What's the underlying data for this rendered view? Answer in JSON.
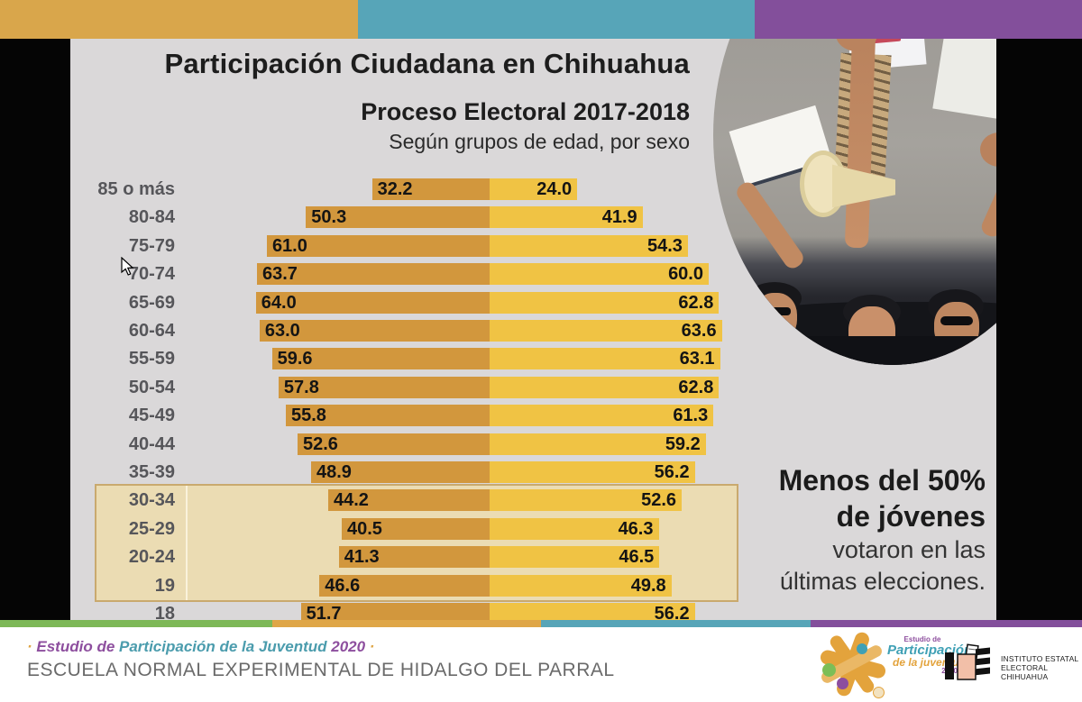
{
  "chart_data": {
    "type": "bar",
    "orientation": "diverging-horizontal",
    "title": "Participación Ciudadana en Chihuahua",
    "subtitle": "Proceso Electoral 2017-2018",
    "note": "Según grupos de edad, por sexo",
    "categories": [
      "85 o más",
      "80-84",
      "75-79",
      "70-74",
      "65-69",
      "60-64",
      "55-59",
      "50-54",
      "45-49",
      "40-44",
      "35-39",
      "30-34",
      "25-29",
      "20-24",
      "19",
      "18"
    ],
    "series": [
      {
        "name": "left",
        "values": [
          32.2,
          50.3,
          61.0,
          63.7,
          64.0,
          63.0,
          59.6,
          57.8,
          55.8,
          52.6,
          48.9,
          44.2,
          40.5,
          41.3,
          46.6,
          51.7
        ]
      },
      {
        "name": "right",
        "values": [
          24.0,
          41.9,
          54.3,
          60.0,
          62.8,
          63.6,
          63.1,
          62.8,
          61.3,
          59.2,
          56.2,
          52.6,
          46.3,
          46.5,
          49.8,
          56.2
        ]
      }
    ],
    "highlighted_categories": [
      "30-34",
      "25-29",
      "20-24",
      "19"
    ],
    "value_format": "one-decimal",
    "legend": "none",
    "grid": false
  },
  "annotation": {
    "lines": [
      "Menos del 50%",
      "de jóvenes",
      "votaron en las",
      "últimas elecciones."
    ]
  },
  "footer": {
    "tagline_segments": [
      {
        "text": "· ",
        "color": "#DFA647"
      },
      {
        "text": "Estudio de ",
        "color": "#8D4E9E"
      },
      {
        "text": "Participación de la Juventud ",
        "color": "#4B9CAD"
      },
      {
        "text": "2020",
        "color": "#8D4E9E"
      },
      {
        "text": " ·",
        "color": "#DFA647"
      }
    ],
    "school": "ESCUELA NORMAL EXPERIMENTAL DE HIDALGO DEL PARRAL"
  },
  "logos": {
    "youth": {
      "line1": "Estudio de",
      "line2": "Participación",
      "line3": "de la juventud",
      "line4": "2020"
    },
    "iee": {
      "line1": "INSTITUTO ESTATAL",
      "line2": "ELECTORAL CHIHUAHUA"
    }
  },
  "colors": {
    "bar_left": "#D2973D",
    "bar_right": "#F0C344",
    "highlight_fill": "#EBDCB3",
    "highlight_border": "#C9A96E",
    "slide_background": "#DAD8D9",
    "strip_orange": "#D9A64B",
    "strip_teal": "#57A5B8",
    "strip_purple": "#834F9B",
    "strip_green": "#7DB857",
    "strip_orange_bottom": "#DFA647",
    "label_gray": "#56565A"
  }
}
